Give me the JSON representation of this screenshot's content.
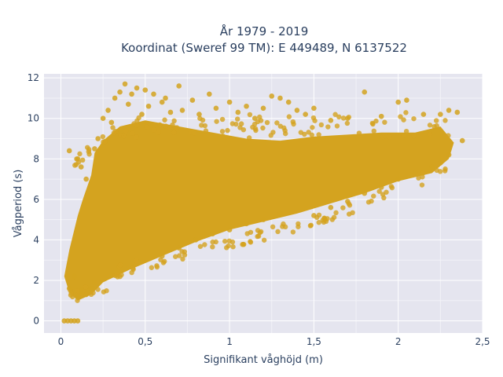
{
  "chart_data": {
    "type": "scatter",
    "title_lines": [
      "År 1979 - 2019",
      "Koordinat (Sweref 99 TM): E 449489, N 6137522"
    ],
    "xlabel": "Signifikant våghöjd (m)",
    "ylabel": "Vågperiod (s)",
    "xlim": [
      -0.1,
      2.5
    ],
    "ylim": [
      -0.6,
      12.2
    ],
    "x_ticks": [
      0,
      0.5,
      1,
      1.5,
      2,
      2.5
    ],
    "x_tick_labels": [
      "0",
      "0,5",
      "1",
      "1,5",
      "2",
      "2,5"
    ],
    "y_ticks": [
      0,
      2,
      4,
      6,
      8,
      10,
      12
    ],
    "y_tick_labels": [
      "0",
      "2",
      "4",
      "6",
      "8",
      "10",
      "12"
    ],
    "grid": true,
    "marker_color": "#d4a31f",
    "plot_background": "#e5e5ef",
    "points": [
      [
        0.02,
        0.0
      ],
      [
        0.04,
        0.0
      ],
      [
        0.06,
        0.0
      ],
      [
        0.08,
        0.0
      ],
      [
        0.1,
        0.0
      ],
      [
        0.05,
        1.6
      ],
      [
        0.08,
        2.2
      ],
      [
        0.1,
        1.2
      ],
      [
        0.12,
        1.5
      ],
      [
        0.15,
        1.3
      ],
      [
        0.18,
        1.6
      ],
      [
        0.2,
        1.9
      ],
      [
        0.05,
        8.4
      ],
      [
        0.1,
        8.0
      ],
      [
        0.12,
        7.6
      ],
      [
        0.15,
        7.0
      ],
      [
        0.2,
        8.5
      ],
      [
        0.22,
        9.0
      ],
      [
        0.25,
        10.0
      ],
      [
        0.28,
        10.4
      ],
      [
        0.3,
        9.8
      ],
      [
        0.32,
        11.0
      ],
      [
        0.35,
        11.3
      ],
      [
        0.38,
        11.7
      ],
      [
        0.4,
        10.7
      ],
      [
        0.42,
        11.2
      ],
      [
        0.45,
        11.5
      ],
      [
        0.48,
        10.2
      ],
      [
        0.5,
        11.4
      ],
      [
        0.52,
        10.6
      ],
      [
        0.55,
        11.2
      ],
      [
        0.6,
        10.8
      ],
      [
        0.62,
        11.0
      ],
      [
        0.65,
        10.3
      ],
      [
        0.7,
        11.6
      ],
      [
        0.72,
        10.4
      ],
      [
        0.78,
        10.9
      ],
      [
        0.82,
        10.2
      ],
      [
        0.88,
        11.2
      ],
      [
        0.92,
        10.5
      ],
      [
        1.0,
        10.8
      ],
      [
        1.05,
        10.3
      ],
      [
        1.1,
        10.6
      ],
      [
        1.15,
        10.0
      ],
      [
        1.2,
        10.5
      ],
      [
        1.25,
        11.1
      ],
      [
        1.3,
        11.0
      ],
      [
        1.35,
        10.8
      ],
      [
        1.4,
        10.4
      ],
      [
        1.45,
        10.2
      ],
      [
        1.5,
        10.5
      ],
      [
        1.6,
        9.9
      ],
      [
        1.7,
        10.0
      ],
      [
        1.8,
        11.3
      ],
      [
        1.9,
        10.1
      ],
      [
        2.0,
        10.8
      ],
      [
        2.05,
        10.9
      ],
      [
        2.15,
        10.2
      ],
      [
        2.25,
        10.2
      ],
      [
        2.3,
        10.4
      ],
      [
        2.35,
        10.3
      ],
      [
        2.38,
        8.9
      ],
      [
        2.3,
        8.2
      ],
      [
        2.25,
        7.8
      ],
      [
        1.5,
        5.2
      ],
      [
        1.6,
        5.6
      ],
      [
        1.7,
        5.9
      ],
      [
        1.8,
        6.3
      ],
      [
        1.9,
        6.6
      ],
      [
        2.0,
        7.0
      ],
      [
        2.1,
        7.3
      ],
      [
        2.2,
        7.6
      ],
      [
        0.6,
        3.2
      ],
      [
        0.7,
        3.6
      ],
      [
        0.8,
        4.0
      ],
      [
        0.9,
        4.3
      ],
      [
        1.0,
        4.5
      ],
      [
        1.1,
        4.8
      ],
      [
        1.2,
        5.0
      ],
      [
        1.3,
        5.3
      ]
    ]
  }
}
